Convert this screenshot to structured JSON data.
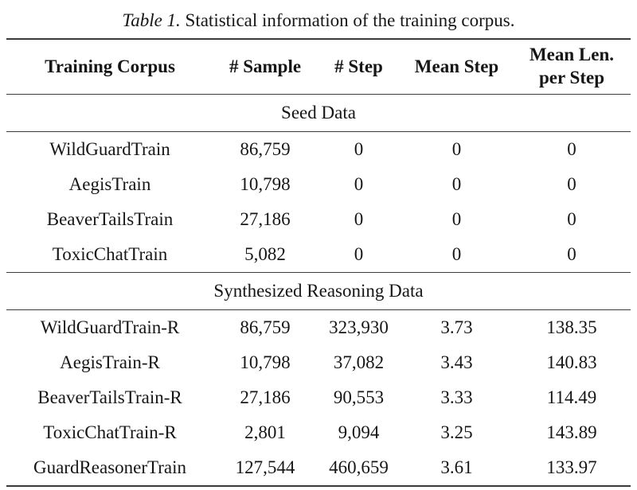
{
  "caption": {
    "label": "Table 1.",
    "text": " Statistical information of the training corpus."
  },
  "table": {
    "columns": [
      "Training Corpus",
      "# Sample",
      "# Step",
      "Mean Step",
      "Mean Len. per Step"
    ],
    "sections": [
      {
        "title": "Seed Data",
        "rows": [
          [
            "WildGuardTrain",
            "86,759",
            "0",
            "0",
            "0"
          ],
          [
            "AegisTrain",
            "10,798",
            "0",
            "0",
            "0"
          ],
          [
            "BeaverTailsTrain",
            "27,186",
            "0",
            "0",
            "0"
          ],
          [
            "ToxicChatTrain",
            "5,082",
            "0",
            "0",
            "0"
          ]
        ]
      },
      {
        "title": "Synthesized Reasoning Data",
        "rows": [
          [
            "WildGuardTrain-R",
            "86,759",
            "323,930",
            "3.73",
            "138.35"
          ],
          [
            "AegisTrain-R",
            "10,798",
            "37,082",
            "3.43",
            "140.83"
          ],
          [
            "BeaverTailsTrain-R",
            "27,186",
            "90,553",
            "3.33",
            "114.49"
          ],
          [
            "ToxicChatTrain-R",
            "2,801",
            "9,094",
            "3.25",
            "143.89"
          ],
          [
            "GuardReasonerTrain",
            "127,544",
            "460,659",
            "3.61",
            "133.97"
          ]
        ]
      }
    ]
  },
  "colors": {
    "rule": "#3a3a3a",
    "text": "#161616",
    "background": "#ffffff"
  }
}
